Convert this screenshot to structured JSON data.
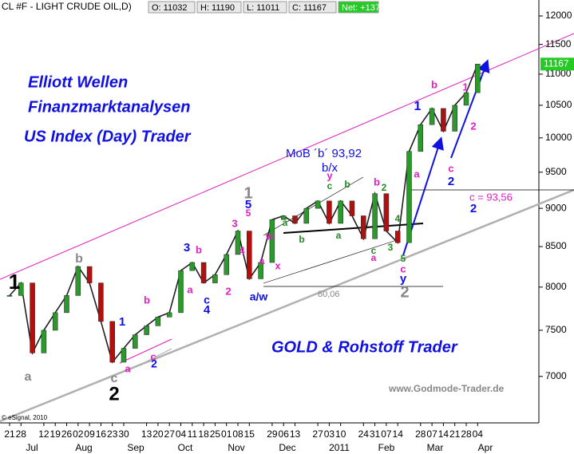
{
  "header": {
    "symbol": "CL #F - LIGHT CRUDE OIL,D)",
    "boxes": [
      "O: 11032",
      "H: 11190",
      "L: 11011",
      "C: 11167",
      "Net: +137"
    ],
    "last_label": "11167"
  },
  "chart_data": {
    "type": "line",
    "categories": [
      "21",
      "28",
      null,
      "12",
      "19",
      "26",
      "02",
      "09",
      "16",
      "23",
      "30",
      null,
      "13",
      "20",
      "27",
      "04",
      "11",
      "18",
      "25",
      "01",
      "08",
      "15",
      null,
      "29",
      "06",
      "13",
      null,
      "27",
      "03",
      "10",
      null,
      "24",
      "31",
      "07",
      "14",
      null,
      "28",
      "07",
      "14",
      "21",
      "28",
      "04"
    ],
    "months": [
      "Jul",
      "Aug",
      "Sep",
      "Oct",
      "Nov",
      "Dec",
      "2011",
      "Feb",
      "Mar",
      "Apr"
    ],
    "series": [
      {
        "name": "Light Crude Oil",
        "color": "#202020",
        "values": [
          7900,
          8050,
          7250,
          7500,
          7700,
          7900,
          8250,
          8050,
          7600,
          7150,
          7300,
          7450,
          7550,
          7650,
          7700,
          8200,
          8300,
          8050,
          8150,
          8400,
          8700,
          8100,
          8300,
          8850,
          8900,
          8800,
          9000,
          9100,
          8800,
          9100,
          8900,
          8600,
          9200,
          8700,
          8550,
          9800,
          10200,
          10450,
          10100,
          10500,
          10700,
          11167
        ]
      }
    ],
    "ylim": [
      6530,
      12290
    ],
    "log": true,
    "yticks": [
      7000,
      7500,
      8000,
      8500,
      9000,
      9500,
      10000,
      10500,
      11000,
      11500,
      12000
    ],
    "last_value": 11167,
    "titles": [
      "Elliott Wellen",
      "Finanzmarktanalysen",
      "US Index (Day) Trader",
      "GOLD & Rohstoff Trader"
    ],
    "source": "www.Godmode-Trader.de",
    "copyright": "© eSignal, 2010",
    "annotations": [
      "MoB ´b´ 93,92",
      "b/x",
      "c = 93,56",
      "80,06"
    ],
    "wave_labels": [
      {
        "text": "1",
        "color": "#000000"
      },
      {
        "text": "a",
        "color": "#888888"
      },
      {
        "text": "b",
        "color": "#888888"
      },
      {
        "text": "1",
        "color": "#1010e0"
      },
      {
        "text": "b",
        "color": "#e020c0"
      },
      {
        "text": "a",
        "color": "#e020c0"
      },
      {
        "text": "c",
        "color": "#e020c0"
      },
      {
        "text": "2",
        "color": "#1010e0"
      },
      {
        "text": "c",
        "color": "#888888"
      },
      {
        "text": "2",
        "color": "#000000"
      },
      {
        "text": "3",
        "color": "#1010e0"
      },
      {
        "text": "b",
        "color": "#e020c0"
      },
      {
        "text": "a",
        "color": "#e020c0"
      },
      {
        "text": "c",
        "color": "#1010e0"
      },
      {
        "text": "4",
        "color": "#1010e0"
      },
      {
        "text": "2",
        "color": "#e020c0"
      },
      {
        "text": "3",
        "color": "#e020c0"
      },
      {
        "text": "4",
        "color": "#e020c0"
      },
      {
        "text": "1",
        "color": "#888888"
      },
      {
        "text": "5",
        "color": "#1010e0"
      },
      {
        "text": "5",
        "color": "#e020c0"
      },
      {
        "text": "w",
        "color": "#e020c0"
      },
      {
        "text": "x",
        "color": "#e020c0"
      },
      {
        "text": "a/w",
        "color": "#1010e0"
      },
      {
        "text": "a",
        "color": "#e020c0"
      },
      {
        "text": "y",
        "color": "#e020c0"
      },
      {
        "text": "c",
        "color": "#228b22"
      },
      {
        "text": "b",
        "color": "#228b22"
      },
      {
        "text": "a",
        "color": "#228b22"
      },
      {
        "text": "b",
        "color": "#228b22"
      },
      {
        "text": "a",
        "color": "#228b22"
      },
      {
        "text": "b",
        "color": "#e020c0"
      },
      {
        "text": "2",
        "color": "#228b22"
      },
      {
        "text": "4",
        "color": "#228b22"
      },
      {
        "text": "3",
        "color": "#228b22"
      },
      {
        "text": "c",
        "color": "#228b22"
      },
      {
        "text": "a",
        "color": "#e020c0"
      },
      {
        "text": "5",
        "color": "#228b22"
      },
      {
        "text": "c",
        "color": "#e020c0"
      },
      {
        "text": "y",
        "color": "#1010e0"
      },
      {
        "text": "2",
        "color": "#888888"
      },
      {
        "text": "1",
        "color": "#1010e0"
      },
      {
        "text": "a",
        "color": "#e020c0"
      },
      {
        "text": "b",
        "color": "#e020c0"
      },
      {
        "text": "c",
        "color": "#e020c0"
      },
      {
        "text": "2",
        "color": "#1010e0"
      },
      {
        "text": "1",
        "color": "#e020c0"
      },
      {
        "text": "2",
        "color": "#e020c0"
      },
      {
        "text": "2",
        "color": "#1010e0"
      }
    ]
  }
}
